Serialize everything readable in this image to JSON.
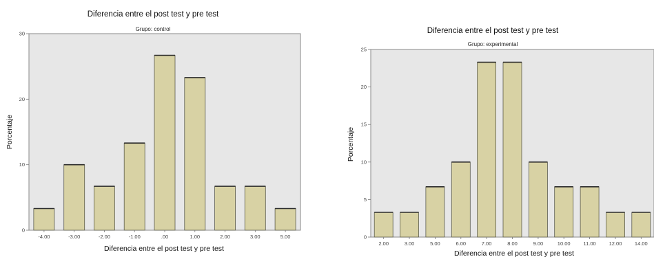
{
  "chart_data": [
    {
      "type": "bar",
      "title": "Diferencia entre el post test y pre test",
      "subtitle": "Grupo: control",
      "xlabel": "Diferencia entre el post test y pre test",
      "ylabel": "Porcentaje",
      "categories": [
        "-4.00",
        "-3.00",
        "-2.00",
        "-1.00",
        ".00",
        "1.00",
        "2.00",
        "3.00",
        "5.00"
      ],
      "values": [
        3.3,
        10.0,
        6.7,
        13.3,
        26.7,
        23.3,
        6.7,
        6.7,
        3.3
      ],
      "ylim": [
        0,
        30
      ],
      "yticks": [
        "0",
        "10",
        "20",
        "30"
      ],
      "grid": false,
      "colors": {
        "bar": "#d8d2a4",
        "plot_bg": "#e7e7e7",
        "bar_edge": "#2b2b2b"
      }
    },
    {
      "type": "bar",
      "title": "Diferencia entre el post test y pre test",
      "subtitle": "Grupo: experimental",
      "xlabel": "Diferencia entre el post test y pre test",
      "ylabel": "Porcentaje",
      "categories": [
        "2.00",
        "3.00",
        "5.00",
        "6.00",
        "7.00",
        "8.00",
        "9.00",
        "10.00",
        "11.00",
        "12.00",
        "14.00"
      ],
      "values": [
        3.3,
        3.3,
        6.7,
        10.0,
        23.3,
        23.3,
        10.0,
        6.7,
        6.7,
        3.3,
        3.3
      ],
      "ylim": [
        0,
        25
      ],
      "yticks": [
        "0",
        "5",
        "10",
        "15",
        "20",
        "25"
      ],
      "grid": false,
      "colors": {
        "bar": "#d8d2a4",
        "plot_bg": "#e7e7e7",
        "bar_edge": "#2b2b2b"
      }
    }
  ]
}
